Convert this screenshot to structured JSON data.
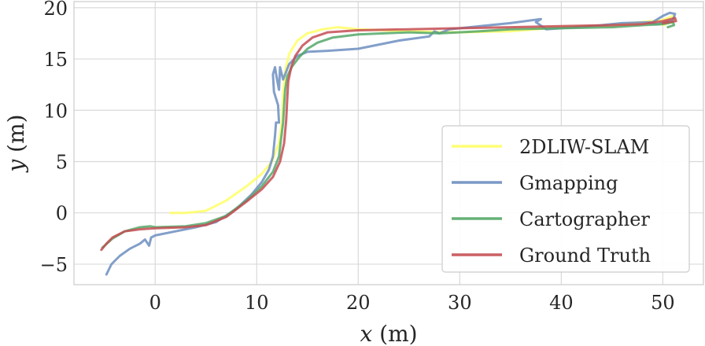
{
  "chart_data": {
    "type": "line",
    "xlabel_var": "x",
    "xlabel_unit": "(m)",
    "ylabel_var": "y",
    "ylabel_unit": "(m)",
    "xlim": [
      -8,
      54
    ],
    "ylim": [
      -7,
      20.6
    ],
    "xticks": [
      0,
      10,
      20,
      30,
      40,
      50
    ],
    "xtick_labels": [
      "0",
      "10",
      "20",
      "30",
      "40",
      "50"
    ],
    "yticks": [
      -5,
      0,
      5,
      10,
      15,
      20
    ],
    "ytick_labels": [
      "−5",
      "0",
      "5",
      "10",
      "15",
      "20"
    ],
    "grid": true,
    "legend_position": "lower-right",
    "series": [
      {
        "name": "2DLIW-SLAM",
        "color": "#ffff66",
        "points": [
          [
            1.5,
            0.0
          ],
          [
            3,
            0.0
          ],
          [
            5,
            0.2
          ],
          [
            7,
            1.2
          ],
          [
            9,
            2.6
          ],
          [
            10.5,
            3.8
          ],
          [
            11.5,
            5.0
          ],
          [
            12.2,
            6.8
          ],
          [
            12.5,
            9.0
          ],
          [
            12.6,
            11.5
          ],
          [
            12.8,
            13.8
          ],
          [
            13.2,
            15.5
          ],
          [
            14,
            16.8
          ],
          [
            15,
            17.5
          ],
          [
            16.5,
            17.9
          ],
          [
            18,
            18.1
          ],
          [
            20,
            17.9
          ],
          [
            25,
            17.7
          ],
          [
            30,
            17.6
          ],
          [
            35,
            17.7
          ],
          [
            40,
            18.1
          ],
          [
            45,
            18.3
          ],
          [
            48,
            18.6
          ],
          [
            50,
            18.8
          ],
          [
            51,
            19.2
          ],
          [
            51.1,
            18.7
          ],
          [
            50,
            18.3
          ]
        ]
      },
      {
        "name": "Gmapping",
        "color": "#6c8ebf",
        "points": [
          [
            -4.8,
            -6.0
          ],
          [
            -4.3,
            -5.0
          ],
          [
            -3.5,
            -4.2
          ],
          [
            -2.5,
            -3.5
          ],
          [
            -1.5,
            -3.0
          ],
          [
            -1.0,
            -2.6
          ],
          [
            -0.6,
            -3.2
          ],
          [
            -0.4,
            -2.4
          ],
          [
            0,
            -2.2
          ],
          [
            2,
            -1.8
          ],
          [
            4,
            -1.4
          ],
          [
            6,
            -0.9
          ],
          [
            8,
            0.4
          ],
          [
            9.5,
            1.8
          ],
          [
            10.5,
            3.0
          ],
          [
            11.2,
            4.2
          ],
          [
            11.6,
            5.5
          ],
          [
            11.8,
            7.5
          ],
          [
            11.9,
            8.8
          ],
          [
            12.2,
            8.8
          ],
          [
            12.1,
            10.5
          ],
          [
            11.7,
            11.8
          ],
          [
            11.6,
            13.5
          ],
          [
            11.8,
            14.2
          ],
          [
            12.0,
            13.0
          ],
          [
            12.2,
            12.0
          ],
          [
            12.3,
            14.2
          ],
          [
            12.6,
            13.0
          ],
          [
            13.2,
            14.5
          ],
          [
            14,
            15.3
          ],
          [
            15,
            15.7
          ],
          [
            17,
            15.8
          ],
          [
            20,
            16.0
          ],
          [
            24,
            16.8
          ],
          [
            27,
            17.2
          ],
          [
            27.5,
            17.7
          ],
          [
            28,
            17.5
          ],
          [
            29,
            17.9
          ],
          [
            32,
            18.2
          ],
          [
            35,
            18.5
          ],
          [
            38,
            18.9
          ],
          [
            37.5,
            18.6
          ],
          [
            38.5,
            17.9
          ],
          [
            40,
            18.0
          ],
          [
            43,
            18.2
          ],
          [
            46,
            18.5
          ],
          [
            49,
            18.6
          ],
          [
            50,
            19.2
          ],
          [
            50.7,
            19.5
          ],
          [
            51.2,
            19.4
          ],
          [
            51,
            18.8
          ],
          [
            49.5,
            18.4
          ],
          [
            48.5,
            18.5
          ]
        ]
      },
      {
        "name": "Cartographer",
        "color": "#55a868",
        "points": [
          [
            -5.2,
            -3.4
          ],
          [
            -4.2,
            -2.5
          ],
          [
            -3,
            -1.8
          ],
          [
            -1.5,
            -1.4
          ],
          [
            -0.5,
            -1.3
          ],
          [
            0,
            -1.4
          ],
          [
            3,
            -1.3
          ],
          [
            5,
            -1.0
          ],
          [
            7,
            -0.3
          ],
          [
            9,
            1.2
          ],
          [
            10.5,
            2.6
          ],
          [
            11.6,
            4.0
          ],
          [
            12.2,
            5.5
          ],
          [
            12.4,
            7.2
          ],
          [
            12.6,
            8.8
          ],
          [
            12.7,
            10.5
          ],
          [
            12.8,
            12.0
          ],
          [
            13.0,
            13.3
          ],
          [
            13.5,
            14.3
          ],
          [
            14.2,
            15.2
          ],
          [
            15,
            16.0
          ],
          [
            16,
            16.6
          ],
          [
            17.5,
            17.1
          ],
          [
            20,
            17.4
          ],
          [
            25,
            17.6
          ],
          [
            28,
            17.5
          ],
          [
            32,
            17.7
          ],
          [
            35,
            17.9
          ],
          [
            40,
            18.0
          ],
          [
            45,
            18.1
          ],
          [
            48,
            18.3
          ],
          [
            50,
            18.4
          ],
          [
            51,
            18.6
          ],
          [
            51.1,
            18.3
          ],
          [
            50.5,
            18.1
          ]
        ]
      },
      {
        "name": "Ground Truth",
        "color": "#c44e52",
        "points": [
          [
            -5.3,
            -3.6
          ],
          [
            -4.8,
            -3.0
          ],
          [
            -4.2,
            -2.4
          ],
          [
            -3,
            -1.8
          ],
          [
            -1.5,
            -1.6
          ],
          [
            0,
            -1.5
          ],
          [
            3,
            -1.4
          ],
          [
            5,
            -1.2
          ],
          [
            7,
            -0.4
          ],
          [
            9,
            1.1
          ],
          [
            10.5,
            2.3
          ],
          [
            11.6,
            3.5
          ],
          [
            12.3,
            5.0
          ],
          [
            12.7,
            6.8
          ],
          [
            12.9,
            9.0
          ],
          [
            13.0,
            11.0
          ],
          [
            13.1,
            12.8
          ],
          [
            13.4,
            14.2
          ],
          [
            13.8,
            15.3
          ],
          [
            14.5,
            16.3
          ],
          [
            15.5,
            17.1
          ],
          [
            17,
            17.6
          ],
          [
            20,
            17.8
          ],
          [
            25,
            17.9
          ],
          [
            30,
            18.0
          ],
          [
            35,
            18.1
          ],
          [
            40,
            18.2
          ],
          [
            45,
            18.3
          ],
          [
            48,
            18.4
          ],
          [
            50,
            18.7
          ],
          [
            51.2,
            19.0
          ],
          [
            51.3,
            18.7
          ],
          [
            50,
            18.5
          ]
        ]
      }
    ]
  }
}
